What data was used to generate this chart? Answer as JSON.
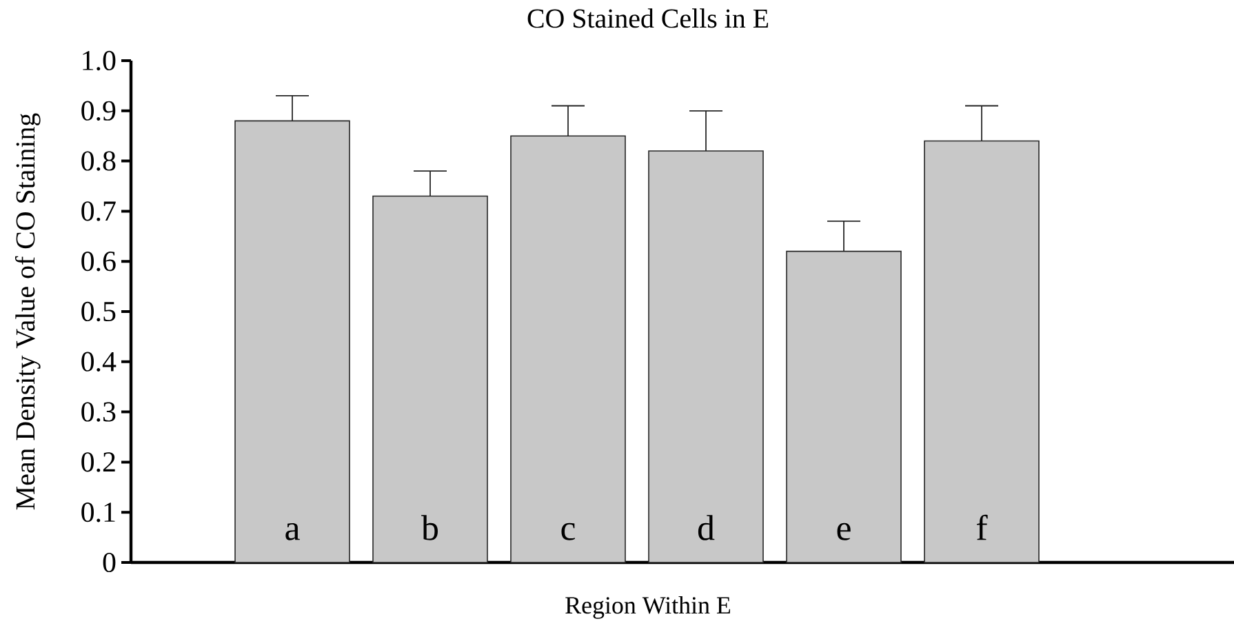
{
  "chart_data": {
    "type": "bar",
    "title": "CO Stained Cells in E",
    "xlabel": "Region Within E",
    "ylabel": "Mean Density Value of CO Staining",
    "categories": [
      "a",
      "b",
      "c",
      "d",
      "e",
      "f"
    ],
    "values": [
      0.88,
      0.73,
      0.85,
      0.82,
      0.62,
      0.84
    ],
    "errors": [
      0.05,
      0.05,
      0.06,
      0.08,
      0.06,
      0.07
    ],
    "color": "#c8c8c8",
    "ylim": [
      0,
      1.0
    ],
    "yticks": [
      0,
      0.1,
      0.2,
      0.3,
      0.4,
      0.5,
      0.6,
      0.7,
      0.8,
      0.9,
      {
        "value": 1.0,
        "label": "1.0"
      }
    ],
    "grid": false
  }
}
